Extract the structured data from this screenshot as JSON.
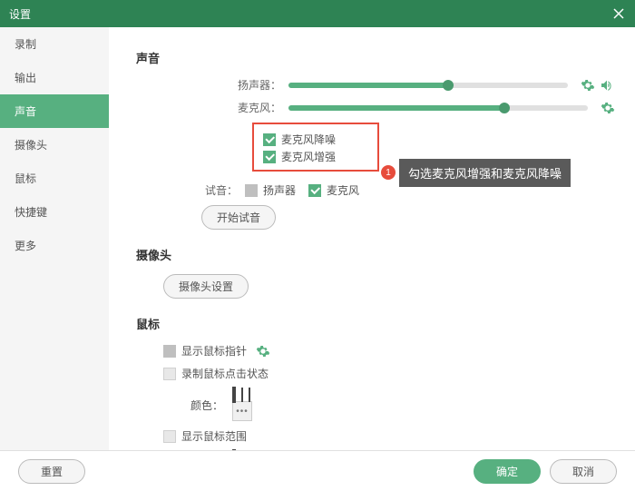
{
  "window": {
    "title": "设置"
  },
  "sidebar": {
    "items": [
      "录制",
      "输出",
      "声音",
      "摄像头",
      "鼠标",
      "快捷键",
      "更多"
    ],
    "activeIndex": 2
  },
  "sound": {
    "title": "声音",
    "speaker_label": "扬声器：",
    "mic_label": "麦克风：",
    "speaker_pct": 57,
    "mic_pct": 72,
    "mic_denoise": "麦克风降噪",
    "mic_boost": "麦克风增强",
    "test_label": "试音：",
    "test_speaker": "扬声器",
    "test_mic": "麦克风",
    "start_test": "开始试音"
  },
  "camera": {
    "title": "摄像头",
    "settings_btn": "摄像头设置"
  },
  "mouse": {
    "title": "鼠标",
    "show_pointer": "显示鼠标指针",
    "record_click": "录制鼠标点击状态",
    "color_label": "颜色：",
    "swatch_colors_1": [
      "#e53935",
      "#f9a825",
      "#1e88e5"
    ],
    "show_range": "显示鼠标范围",
    "swatch_colors_2": [
      "#e53935",
      "#f9a825",
      "#1e88e5"
    ]
  },
  "annotation": {
    "num": "1",
    "text": "勾选麦克风增强和麦克风降噪"
  },
  "footer": {
    "reset": "重置",
    "ok": "确定",
    "cancel": "取消"
  },
  "colors": {
    "accent": "#57b080",
    "titlebar": "#2e8354",
    "highlight": "#e74c3c"
  }
}
